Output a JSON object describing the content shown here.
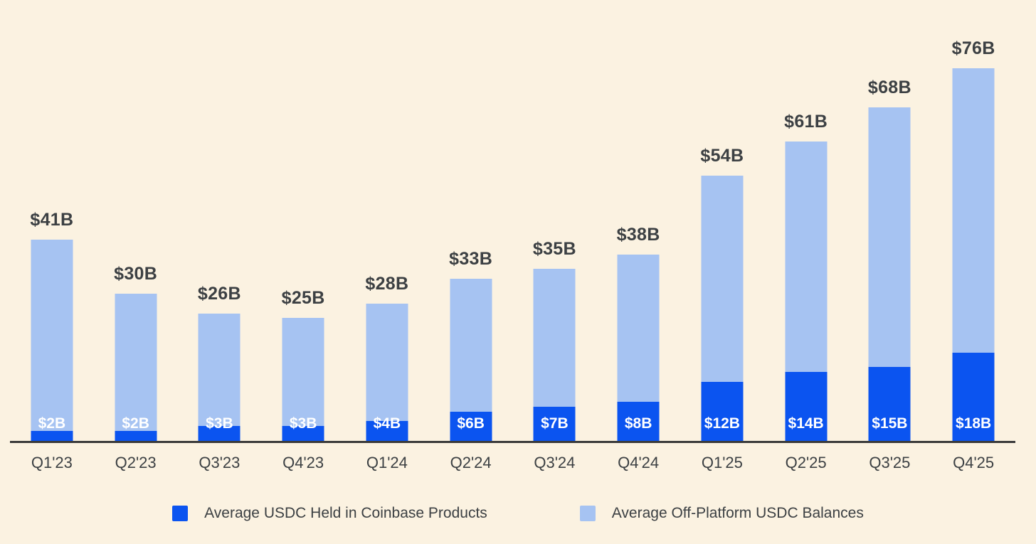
{
  "background_color": "#FBF2E1",
  "colors": {
    "coinbase_blue": "#0B54F0",
    "off_platform_blue": "#A6C3F2",
    "axis": "#3A3A3A",
    "text": "#3C4043",
    "bar_inner_label": "#FFFFFF"
  },
  "chart_data": {
    "type": "bar",
    "stacked": true,
    "grid": false,
    "legend_position": "bottom",
    "ylim": [
      0,
      80
    ],
    "categories": [
      "Q1'23",
      "Q2'23",
      "Q3'23",
      "Q4'23",
      "Q1'24",
      "Q2'24",
      "Q3'24",
      "Q4'24",
      "Q1'25",
      "Q2'25",
      "Q3'25",
      "Q4'25"
    ],
    "series": [
      {
        "name": "Average USDC Held in Coinbase Products",
        "color": "#0B54F0",
        "values": [
          2,
          2,
          3,
          3,
          4,
          6,
          7,
          8,
          12,
          14,
          15,
          18
        ],
        "labels": [
          "$2B",
          "$2B",
          "$3B",
          "$3B",
          "$4B",
          "$6B",
          "$7B",
          "$8B",
          "$12B",
          "$14B",
          "$15B",
          "$18B"
        ]
      },
      {
        "name": "Average Off-Platform USDC Balances",
        "color": "#A6C3F2",
        "values": [
          39,
          28,
          23,
          22,
          24,
          27,
          28,
          30,
          42,
          47,
          53,
          58
        ]
      }
    ],
    "totals": [
      41,
      30,
      26,
      25,
      28,
      33,
      35,
      38,
      54,
      61,
      68,
      76
    ],
    "total_labels": [
      "$41B",
      "$30B",
      "$26B",
      "$25B",
      "$28B",
      "$33B",
      "$35B",
      "$38B",
      "$54B",
      "$61B",
      "$68B",
      "$76B"
    ]
  },
  "legend": {
    "items": [
      {
        "label": "Average USDC Held in Coinbase Products",
        "color": "#0B54F0"
      },
      {
        "label": "Average Off-Platform USDC Balances",
        "color": "#A6C3F2"
      }
    ]
  }
}
